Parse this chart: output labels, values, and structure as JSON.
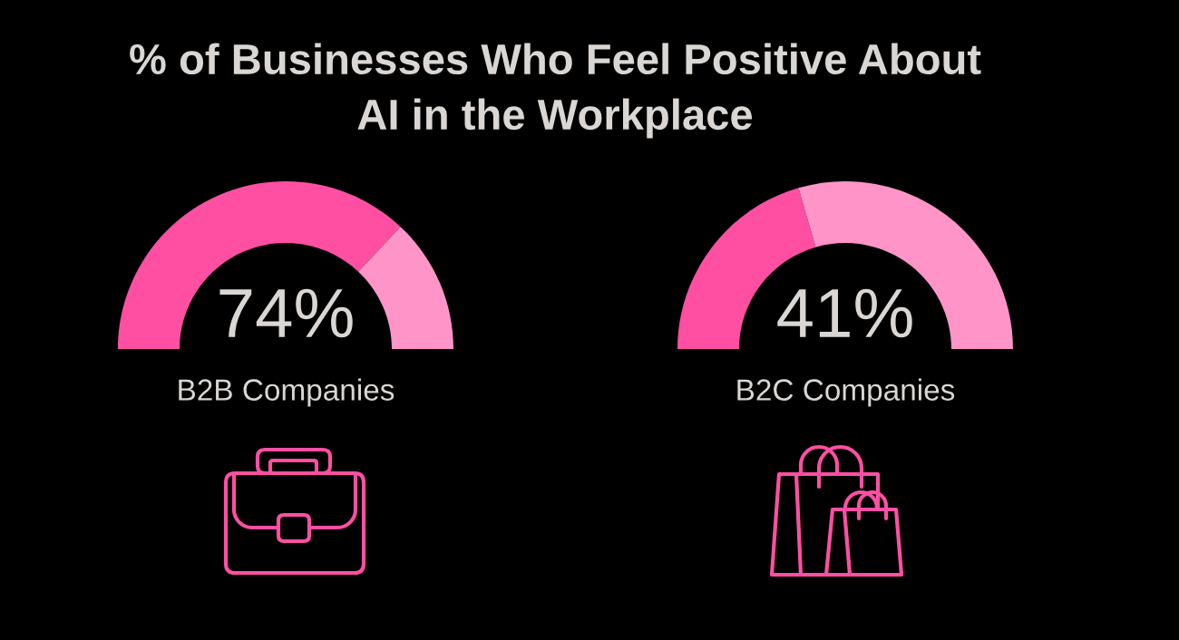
{
  "chart_data": [
    {
      "type": "donut",
      "title": "% of Businesses Who Feel Positive About\nAI in the Workplace",
      "categories": [
        null,
        null
      ],
      "values": [
        74,
        26
      ],
      "colors": [
        "#ff4fa3",
        "#ff94c8"
      ],
      "value_labels": [
        "74%",
        null
      ],
      "xlabel": "B2B Companies"
    },
    {
      "type": "donut",
      "categories": [
        null,
        null
      ],
      "values": [
        41,
        59
      ],
      "colors": [
        "#ff4fa3",
        "#ff94c8"
      ],
      "value_labels": [
        "41%",
        null
      ],
      "xlabel": "B2C Companies"
    }
  ]
}
